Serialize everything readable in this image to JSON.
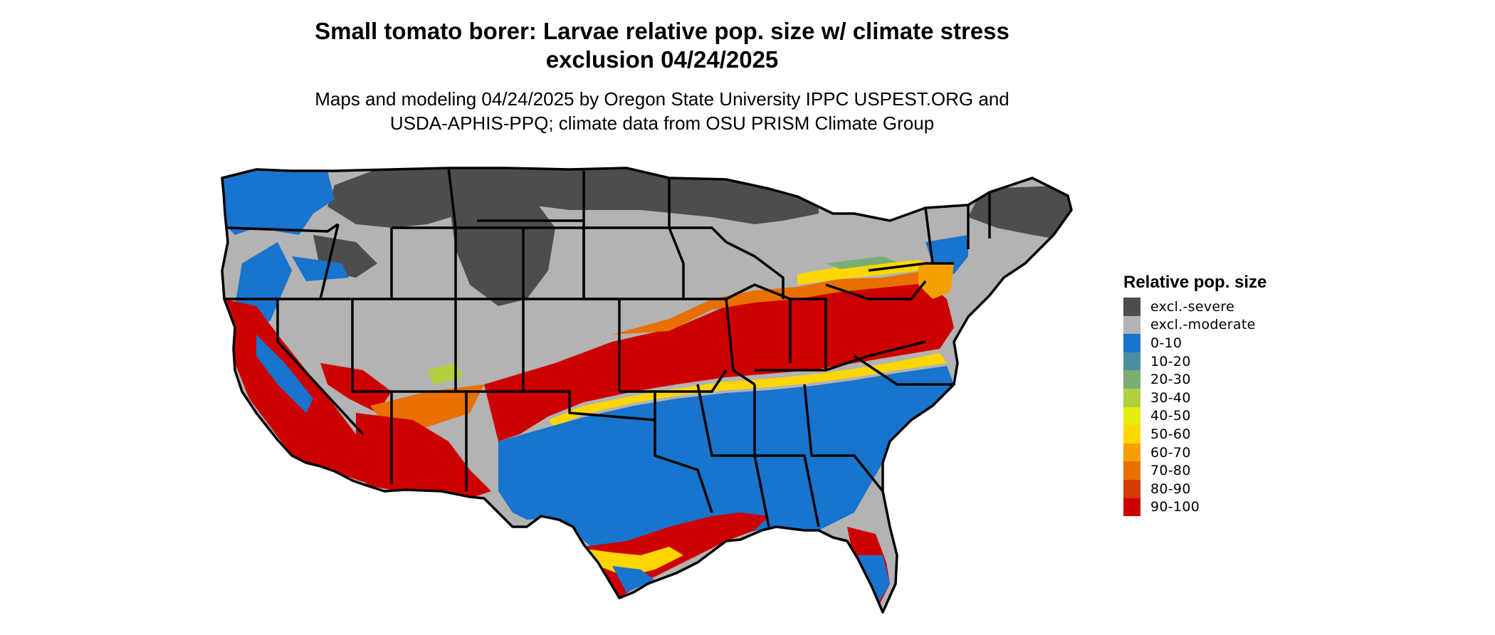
{
  "title_line1": "Small tomato borer: Larvae relative pop. size w/ climate stress",
  "title_line2": "exclusion 04/24/2025",
  "subtitle_line1": "Maps and modeling 04/24/2025 by Oregon State University IPPC USPEST.ORG and",
  "subtitle_line2": "USDA-APHIS-PPQ; climate data from OSU PRISM Climate Group",
  "legend": {
    "title": "Relative pop. size",
    "items": [
      {
        "label": "excl.-severe",
        "color": "#4d4d4d"
      },
      {
        "label": "excl.-moderate",
        "color": "#b3b3b3"
      },
      {
        "label": "0-10",
        "color": "#1874cd"
      },
      {
        "label": "10-20",
        "color": "#4a8fa0"
      },
      {
        "label": "20-30",
        "color": "#7aad74"
      },
      {
        "label": "30-40",
        "color": "#b2cf3f"
      },
      {
        "label": "40-50",
        "color": "#e4ec12"
      },
      {
        "label": "50-60",
        "color": "#ffd700"
      },
      {
        "label": "60-70",
        "color": "#f4a000"
      },
      {
        "label": "70-80",
        "color": "#e77000"
      },
      {
        "label": "80-90",
        "color": "#d43b00"
      },
      {
        "label": "90-100",
        "color": "#cd0000"
      }
    ]
  }
}
